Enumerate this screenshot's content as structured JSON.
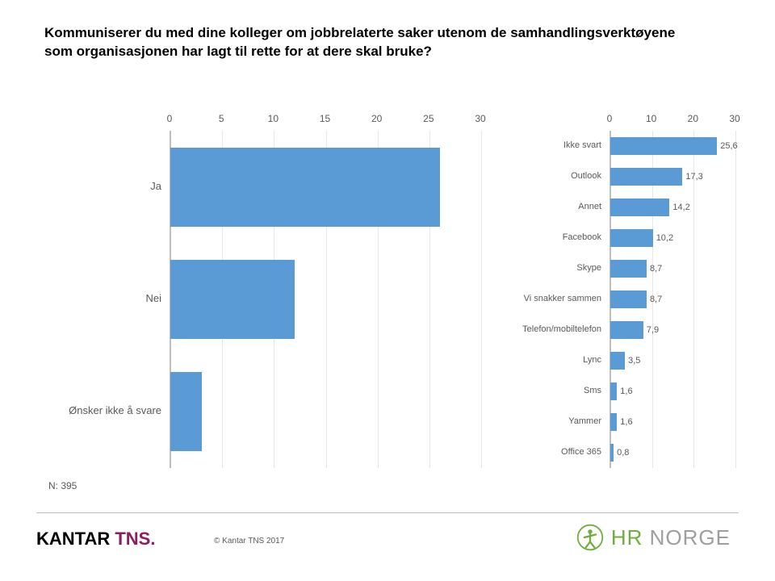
{
  "title": "Kommuniserer du med dine kolleger om jobbrelaterte saker utenom de samhandlingsverktøyene som organisasjonen har lagt til rette for at dere skal bruke?",
  "n_label": "N: 395",
  "copyright": "© Kantar TNS 2017",
  "logo_kantar_1": "KANTAR ",
  "logo_kantar_2": "TNS",
  "logo_kantar_dot": ".",
  "logo_hr_1": "HR",
  "logo_hr_2": " NORGE",
  "left_chart": {
    "type": "bar-horizontal",
    "xlim": [
      0,
      30
    ],
    "xtick_step": 5,
    "xticks": [
      "0",
      "5",
      "10",
      "15",
      "20",
      "25",
      "30"
    ],
    "bar_color": "#5b9bd5",
    "grid_color": "#e6e6e6",
    "axis_color": "#bfbfbf",
    "label_color": "#595959",
    "label_fontsize": 13,
    "tick_fontsize": 12,
    "categories": [
      "Ja",
      "Nei",
      "Ønsker ikke å svare"
    ],
    "values": [
      26.0,
      12.0,
      3.0
    ]
  },
  "right_chart": {
    "type": "bar-horizontal",
    "xlim": [
      0,
      30
    ],
    "xtick_step": 10,
    "xticks": [
      "0",
      "10",
      "20",
      "30"
    ],
    "bar_color": "#5b9bd5",
    "grid_color": "#e6e6e6",
    "axis_color": "#bfbfbf",
    "label_color": "#595959",
    "label_fontsize": 11,
    "tick_fontsize": 12,
    "categories": [
      "Ikke svart",
      "Outlook",
      "Annet",
      "Facebook",
      "Skype",
      "Vi snakker sammen",
      "Telefon/mobiltelefon",
      "Lync",
      "Sms",
      "Yammer",
      "Office 365"
    ],
    "values": [
      25.6,
      17.3,
      14.2,
      10.2,
      8.7,
      8.7,
      7.9,
      3.5,
      1.6,
      1.6,
      0.8
    ],
    "value_labels": [
      "25,6",
      "17,3",
      "14,2",
      "10,2",
      "8,7",
      "8,7",
      "7,9",
      "3,5",
      "1,6",
      "1,6",
      "0,8"
    ]
  }
}
